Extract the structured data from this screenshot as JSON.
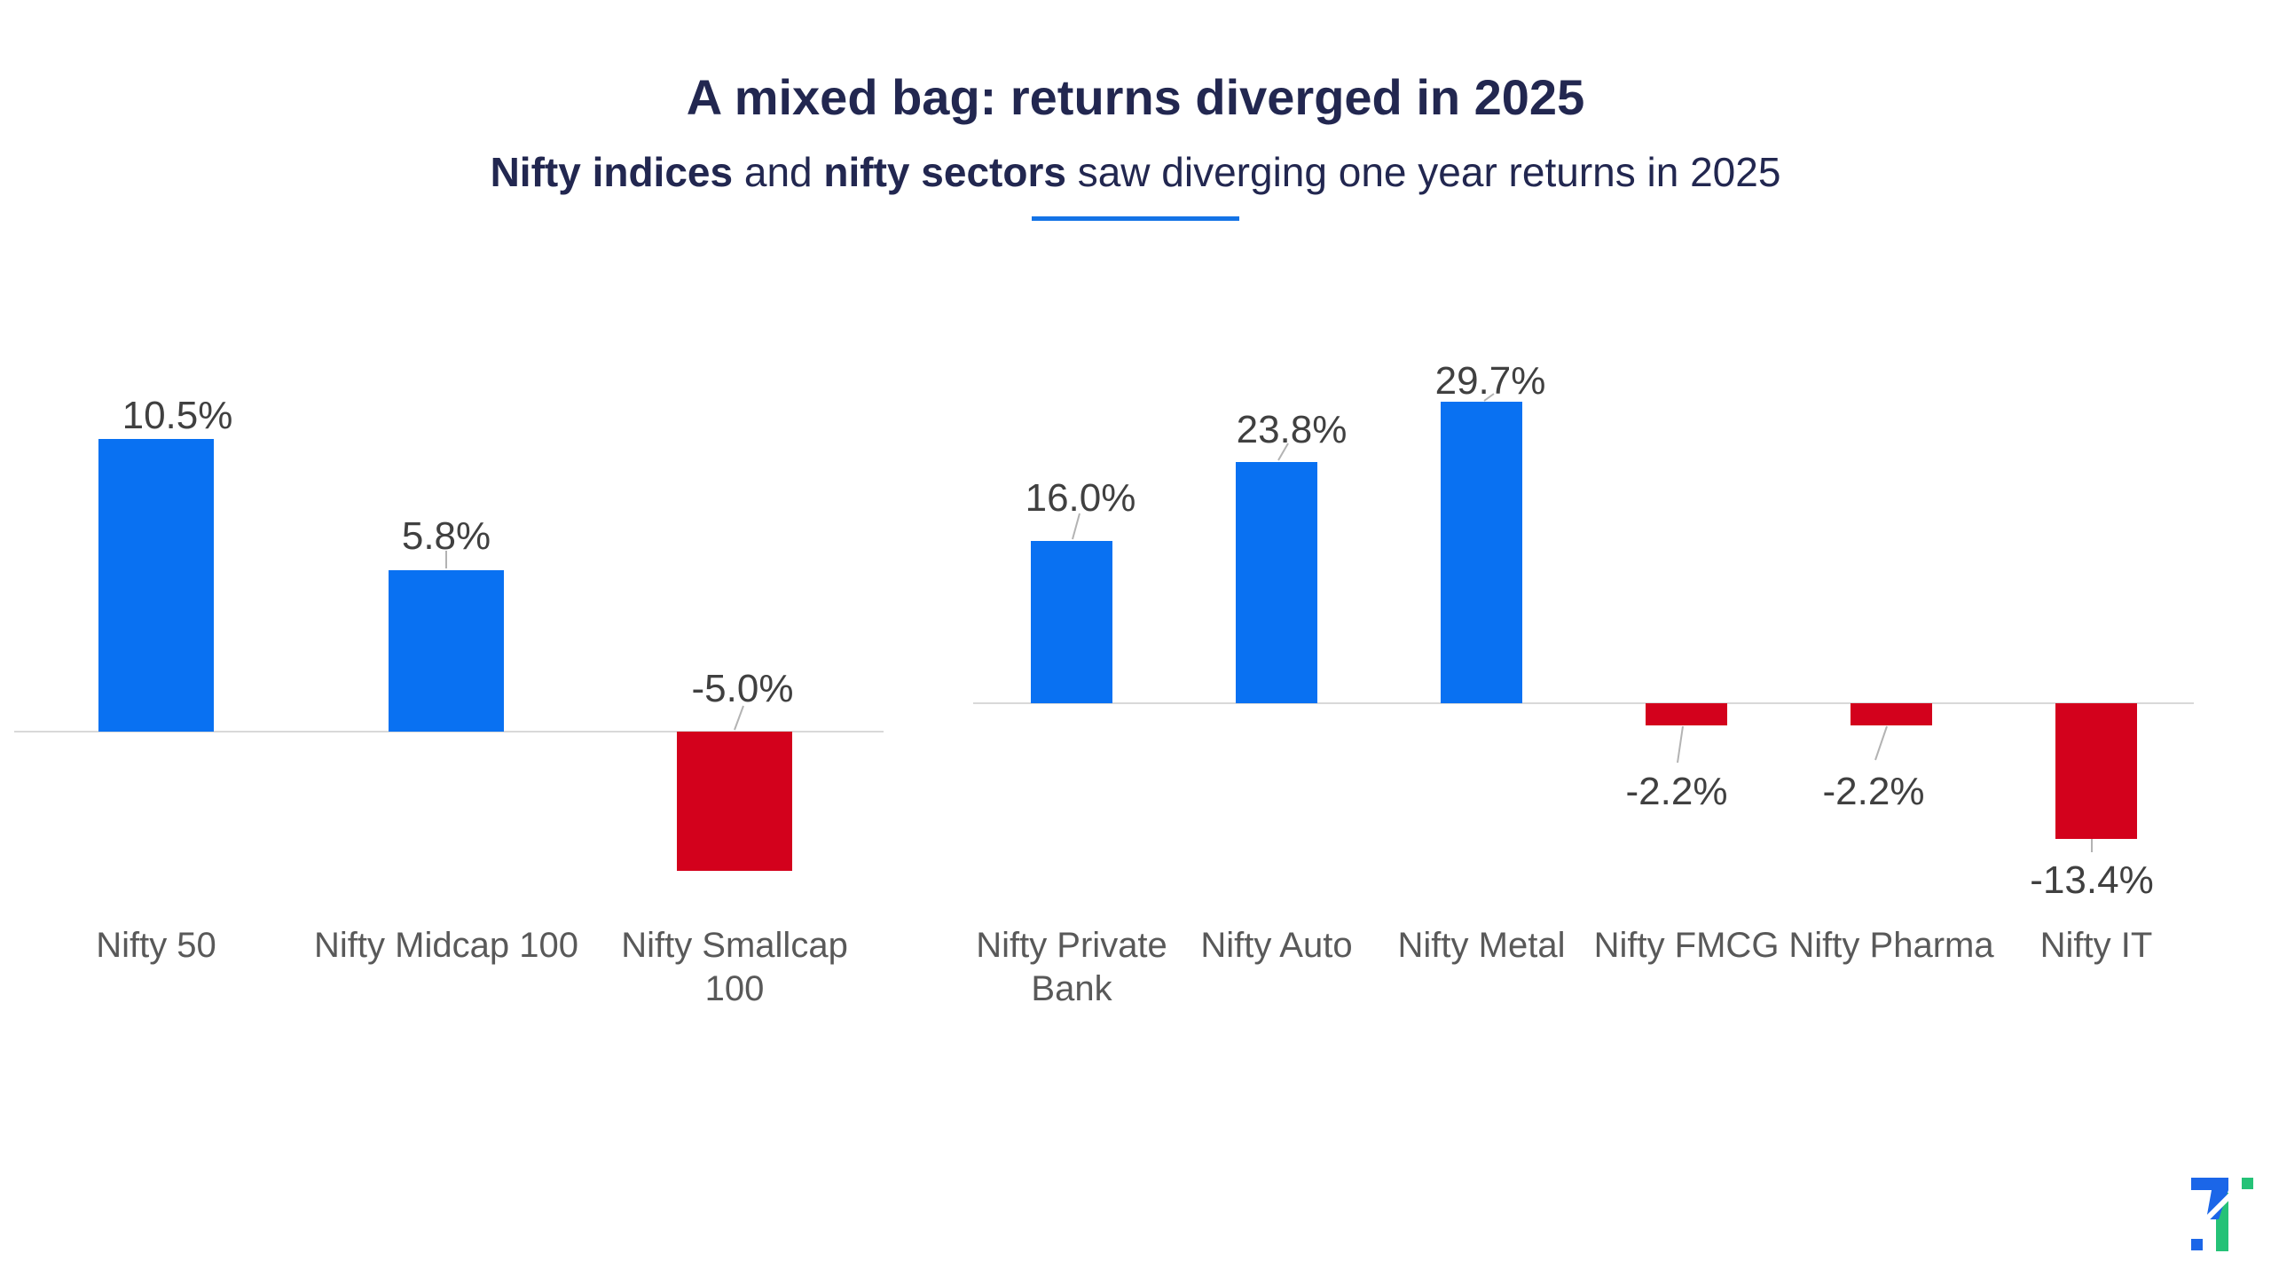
{
  "page": {
    "title": "A mixed bag: returns diverged in 2025",
    "subtitle": {
      "segments": [
        {
          "text": "Nifty indices",
          "bold": true
        },
        {
          "text": " and ",
          "bold": false
        },
        {
          "text": "nifty sectors",
          "bold": true
        },
        {
          "text": " saw diverging one year returns in 2025",
          "bold": false
        }
      ]
    },
    "colors": {
      "positive_bar": "#0971F2",
      "negative_bar": "#D3011C",
      "title_text": "#222750",
      "accent_underline": "#1373E6",
      "axis_line": "#D9D9D9",
      "value_label": "#404040",
      "category_label": "#595959",
      "leader_line": "#B3B3B3",
      "logo_blue": "#1B66E8",
      "logo_green": "#25C277"
    }
  },
  "chart_data": [
    {
      "type": "bar",
      "title": "",
      "categories": [
        "Nifty 50",
        "Nifty Midcap 100",
        "Nifty Smallcap 100"
      ],
      "values": [
        10.5,
        5.8,
        -5.0
      ],
      "value_labels": [
        "10.5%",
        "5.8%",
        "-5.0%"
      ],
      "unit": "percent (one year return)",
      "xlabel": "",
      "ylabel": "",
      "baseline": 0,
      "grid": false,
      "legend": "none"
    },
    {
      "type": "bar",
      "title": "",
      "categories": [
        "Nifty Private Bank",
        "Nifty Auto",
        "Nifty Metal",
        "Nifty FMCG",
        "Nifty Pharma",
        "Nifty IT"
      ],
      "values": [
        16.0,
        23.8,
        29.7,
        -2.2,
        -2.2,
        -13.4
      ],
      "value_labels": [
        "16.0%",
        "23.8%",
        "29.7%",
        "-2.2%",
        "-2.2%",
        "-13.4%"
      ],
      "unit": "percent (one year return)",
      "xlabel": "",
      "ylabel": "",
      "baseline": 0,
      "grid": false,
      "legend": "none"
    }
  ]
}
